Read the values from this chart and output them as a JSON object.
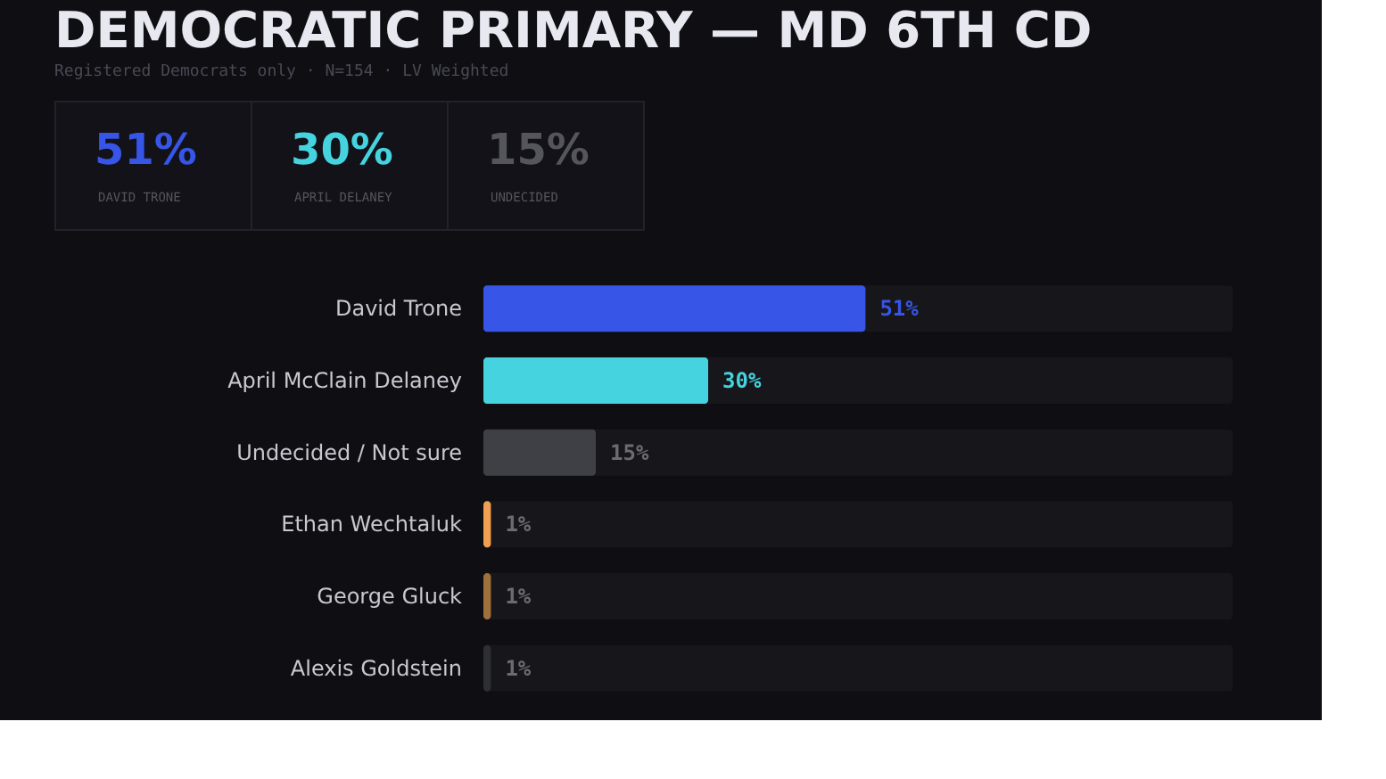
{
  "chart_data": {
    "type": "bar",
    "orientation": "horizontal",
    "title": "DEMOCRATIC PRIMARY — MD 6TH CD",
    "subtitle": "Registered Democrats only · N=154 · LV Weighted",
    "annotations": [
      "51%",
      "DAVID TRONE",
      "30%",
      "APRIL DELANEY",
      "15%",
      "UNDECIDED"
    ],
    "categories": [
      "David Trone",
      "April McClain Delaney",
      "Undecided / Not sure",
      "Ethan Wechtaluk",
      "George Gluck",
      "Alexis Goldstein"
    ],
    "values": [
      51,
      30,
      15,
      1,
      1,
      1
    ],
    "value_labels": [
      "51%",
      "30%",
      "15%",
      "1%",
      "1%",
      "1%"
    ],
    "colors": [
      "#3755e6",
      "#45d3e0",
      "#3f4046",
      "#f0a050",
      "#a0703a",
      "#2e2f33"
    ],
    "xlim": [
      0,
      100
    ]
  }
}
